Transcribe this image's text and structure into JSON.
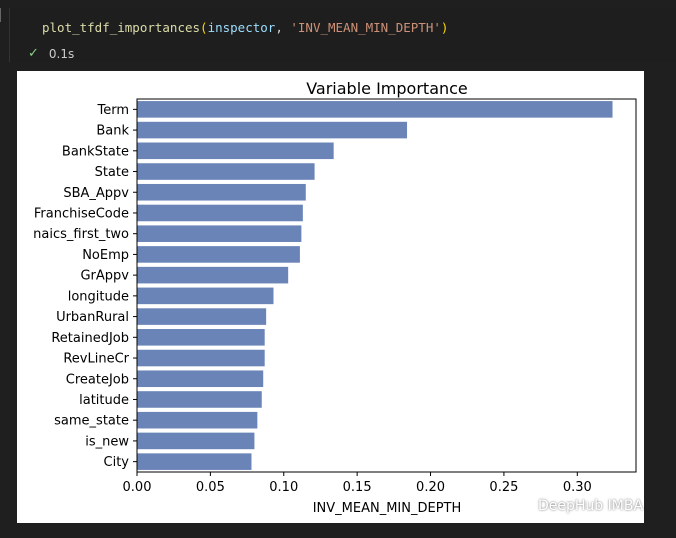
{
  "cell": {
    "code": {
      "fn": "plot_tfdf_importances",
      "open": "(",
      "arg1": "inspector",
      "sep": ", ",
      "arg2": "'INV_MEAN_MIN_DEPTH'",
      "close": ")"
    },
    "status_icon": "check-icon",
    "exec_time": "0.1s"
  },
  "chart_data": {
    "type": "bar",
    "orientation": "horizontal",
    "title": "Variable Importance",
    "xlabel": "INV_MEAN_MIN_DEPTH",
    "ylabel": "",
    "categories": [
      "Term",
      "Bank",
      "BankState",
      "State",
      "SBA_Appv",
      "FranchiseCode",
      "naics_first_two",
      "NoEmp",
      "GrAppv",
      "longitude",
      "UrbanRural",
      "RetainedJob",
      "RevLineCr",
      "CreateJob",
      "latitude",
      "same_state",
      "is_new",
      "City"
    ],
    "values": [
      0.324,
      0.184,
      0.134,
      0.121,
      0.115,
      0.113,
      0.112,
      0.111,
      0.103,
      0.093,
      0.088,
      0.087,
      0.087,
      0.086,
      0.085,
      0.082,
      0.08,
      0.078
    ],
    "xlim": [
      0.0,
      0.34
    ],
    "xticks": [
      "0.00",
      "0.05",
      "0.10",
      "0.15",
      "0.20",
      "0.25",
      "0.30"
    ],
    "bar_color": "#6a84b8",
    "grid": false
  },
  "watermark": {
    "text": "DeepHub IMBA",
    "icon": "wechat-icon"
  }
}
